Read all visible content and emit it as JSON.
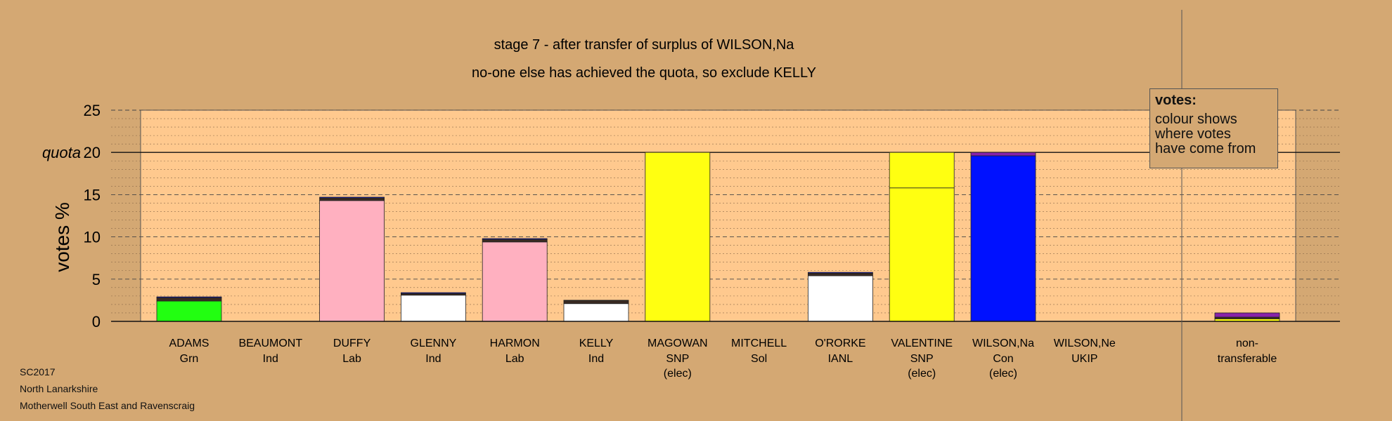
{
  "title_line1": "stage 7 - after transfer of surplus of WILSON,Na",
  "title_line2": "no-one else has achieved the quota, so exclude KELLY",
  "legend": {
    "title": "votes:",
    "line1": "colour shows",
    "line2": "where votes",
    "line3": "have come from"
  },
  "footer": {
    "line1": "SC2017",
    "line2": "North Lanarkshire",
    "line3": "Motherwell South East and Ravenscraig"
  },
  "colors": {
    "background": "#d4a873",
    "plot_area": "#ffc98e",
    "Grn": "#22ff11",
    "Lab": "#ffb0c0",
    "Ind": "#ffffff",
    "SNP": "#ffff11",
    "Con": "#0011ff",
    "transfer_band": "#3a2a22",
    "Con_transfer": "#8822aa"
  },
  "chart_data": {
    "type": "bar",
    "ylabel": "votes %",
    "ylim": [
      0,
      25
    ],
    "yticks": [
      0,
      5,
      10,
      15,
      20,
      25
    ],
    "quota": 20,
    "quota_label": "quota",
    "grid": true,
    "candidates": [
      {
        "name": "ADAMS",
        "party": "Grn",
        "elected": "",
        "total": 2.9,
        "segments": [
          {
            "from": "Grn",
            "value": 2.4
          },
          {
            "from": "transfer",
            "value": 0.4
          },
          {
            "from": "Con",
            "value": 0.1
          }
        ]
      },
      {
        "name": "BEAUMONT",
        "party": "Ind",
        "elected": "",
        "total": 0,
        "segments": []
      },
      {
        "name": "DUFFY",
        "party": "Lab",
        "elected": "",
        "total": 14.7,
        "segments": [
          {
            "from": "Lab",
            "value": 14.3
          },
          {
            "from": "transfer",
            "value": 0.3
          },
          {
            "from": "Con",
            "value": 0.1
          }
        ]
      },
      {
        "name": "GLENNY",
        "party": "Ind",
        "elected": "",
        "total": 3.4,
        "segments": [
          {
            "from": "Ind",
            "value": 3.1
          },
          {
            "from": "transfer",
            "value": 0.2
          },
          {
            "from": "Con",
            "value": 0.1
          }
        ]
      },
      {
        "name": "HARMON",
        "party": "Lab",
        "elected": "",
        "total": 9.8,
        "segments": [
          {
            "from": "Lab",
            "value": 9.4
          },
          {
            "from": "transfer",
            "value": 0.3
          },
          {
            "from": "Con",
            "value": 0.1
          }
        ]
      },
      {
        "name": "KELLY",
        "party": "Ind",
        "elected": "",
        "total": 2.5,
        "segments": [
          {
            "from": "Ind",
            "value": 2.1
          },
          {
            "from": "transfer",
            "value": 0.35
          },
          {
            "from": "Con",
            "value": 0.05
          }
        ]
      },
      {
        "name": "MAGOWAN",
        "party": "SNP",
        "elected": "(elec)",
        "total": 20.0,
        "segments": [
          {
            "from": "SNP",
            "value": 20.0
          }
        ]
      },
      {
        "name": "MITCHELL",
        "party": "Sol",
        "elected": "",
        "total": 0,
        "segments": []
      },
      {
        "name": "O'RORKE",
        "party": "IANL",
        "elected": "",
        "total": 5.8,
        "segments": [
          {
            "from": "Ind",
            "value": 5.4
          },
          {
            "from": "transfer",
            "value": 0.3
          },
          {
            "from": "Con",
            "value": 0.1
          }
        ]
      },
      {
        "name": "VALENTINE",
        "party": "SNP",
        "elected": "(elec)",
        "total": 20.0,
        "segments": [
          {
            "from": "SNP",
            "value": 15.8
          },
          {
            "from": "SNP",
            "value": 4.2
          }
        ]
      },
      {
        "name": "WILSON,Na",
        "party": "Con",
        "elected": "(elec)",
        "total": 20.0,
        "segments": [
          {
            "from": "Con",
            "value": 19.6
          },
          {
            "from": "Con_transfer",
            "value": 0.4
          }
        ]
      },
      {
        "name": "WILSON,Ne",
        "party": "UKIP",
        "elected": "",
        "total": 0,
        "segments": []
      }
    ],
    "non_transferable": {
      "line1": "non-",
      "line2": "transferable",
      "total": 1.0,
      "segments": [
        {
          "from": "SNP",
          "value": 0.3
        },
        {
          "from": "transfer",
          "value": 0.2
        },
        {
          "from": "Con_transfer",
          "value": 0.5
        }
      ]
    }
  }
}
